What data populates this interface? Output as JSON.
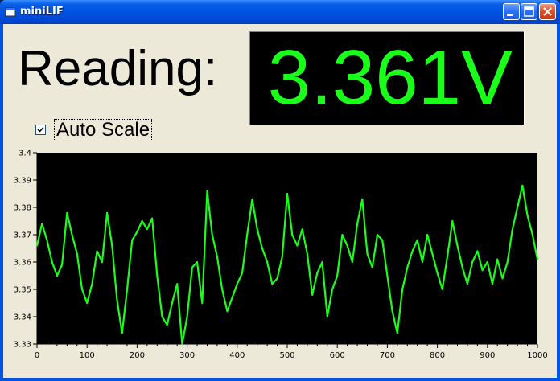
{
  "window": {
    "title": "miniLIF",
    "buttons": [
      "minimize",
      "maximize",
      "close"
    ]
  },
  "reading": {
    "label": "Reading:",
    "value": "3.361V",
    "value_color": "#1aff1a",
    "display_background": "#000000"
  },
  "auto_scale": {
    "label": "Auto Scale",
    "checked": true
  },
  "chart_data": {
    "type": "line",
    "title": "",
    "xlabel": "",
    "ylabel": "",
    "xlim": [
      0,
      1000
    ],
    "ylim": [
      3.33,
      3.4
    ],
    "x_ticks": [
      "0",
      "100",
      "200",
      "300",
      "400",
      "500",
      "600",
      "700",
      "800",
      "900",
      "1000"
    ],
    "y_ticks": [
      "3.4",
      "3.39",
      "3.38",
      "3.37",
      "3.36",
      "3.35",
      "3.34",
      "3.33"
    ],
    "grid": false,
    "background": "#000000",
    "line_color": "#1aff1a",
    "series": [
      {
        "x": [
          0,
          10,
          20,
          30,
          40,
          50,
          60,
          70,
          80,
          90,
          100,
          110,
          120,
          130,
          140,
          150,
          160,
          170,
          180,
          190,
          200,
          210,
          220,
          230,
          240,
          250,
          260,
          270,
          280,
          290,
          300,
          310,
          320,
          330,
          340,
          350,
          360,
          370,
          380,
          390,
          400,
          410,
          420,
          430,
          440,
          450,
          460,
          470,
          480,
          490,
          500,
          510,
          520,
          530,
          540,
          550,
          560,
          570,
          580,
          590,
          600,
          610,
          620,
          630,
          640,
          650,
          660,
          670,
          680,
          690,
          700,
          710,
          720,
          730,
          740,
          750,
          760,
          770,
          780,
          790,
          800,
          810,
          820,
          830,
          840,
          850,
          860,
          870,
          880,
          890,
          900,
          910,
          920,
          930,
          940,
          950,
          960,
          970,
          980,
          990,
          1000
        ],
        "values": [
          3.366,
          3.374,
          3.368,
          3.36,
          3.355,
          3.359,
          3.378,
          3.37,
          3.363,
          3.35,
          3.345,
          3.352,
          3.364,
          3.36,
          3.378,
          3.366,
          3.346,
          3.334,
          3.35,
          3.368,
          3.371,
          3.375,
          3.372,
          3.376,
          3.355,
          3.34,
          3.337,
          3.345,
          3.352,
          3.33,
          3.34,
          3.358,
          3.36,
          3.345,
          3.386,
          3.37,
          3.362,
          3.35,
          3.342,
          3.347,
          3.352,
          3.356,
          3.37,
          3.383,
          3.372,
          3.365,
          3.36,
          3.352,
          3.354,
          3.362,
          3.385,
          3.37,
          3.366,
          3.372,
          3.363,
          3.348,
          3.356,
          3.36,
          3.34,
          3.35,
          3.355,
          3.37,
          3.366,
          3.36,
          3.374,
          3.383,
          3.363,
          3.358,
          3.37,
          3.368,
          3.355,
          3.342,
          3.334,
          3.35,
          3.358,
          3.364,
          3.368,
          3.36,
          3.37,
          3.363,
          3.356,
          3.35,
          3.362,
          3.375,
          3.366,
          3.358,
          3.352,
          3.36,
          3.364,
          3.357,
          3.36,
          3.352,
          3.361,
          3.354,
          3.36,
          3.372,
          3.38,
          3.388,
          3.377,
          3.37,
          3.361
        ]
      }
    ]
  }
}
